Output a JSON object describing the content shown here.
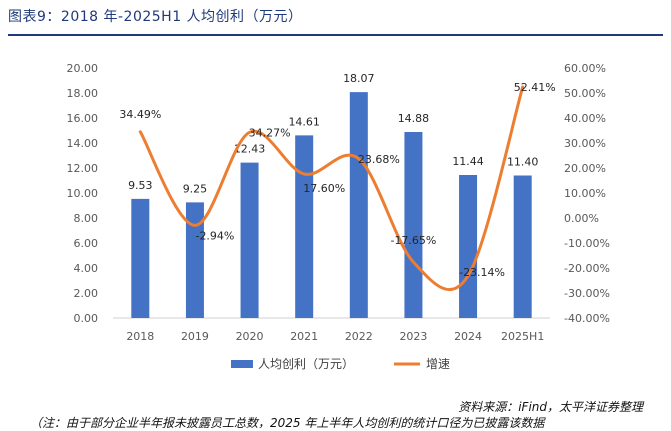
{
  "title": "图表9：2018 年-2025H1 人均创利（万元）",
  "source": "资料来源：iFind，太平洋证券整理",
  "note": "（注：由于部分企业半年报未披露员工总数，2025 年上半年人均创利的统计口径为已披露该数据",
  "colors": {
    "bar": "#4472c4",
    "line": "#ed7d31",
    "title": "#1f3a7a"
  },
  "chart_data": {
    "type": "bar",
    "categories": [
      "2018",
      "2019",
      "2020",
      "2021",
      "2022",
      "2023",
      "2024",
      "2025H1"
    ],
    "series": [
      {
        "name": "人均创利（万元）",
        "type": "bar",
        "axis": "left",
        "values": [
          9.53,
          9.25,
          12.43,
          14.61,
          18.07,
          14.88,
          11.44,
          11.4
        ],
        "labels": [
          "9.53",
          "9.25",
          "12.43",
          "14.61",
          "18.07",
          "14.88",
          "11.44",
          "11.40"
        ]
      },
      {
        "name": "增速",
        "type": "line",
        "axis": "right",
        "smooth": true,
        "values": [
          34.49,
          -2.94,
          34.27,
          17.6,
          23.68,
          -17.65,
          -23.14,
          52.41
        ],
        "labels": [
          "34.49%",
          "-2.94%",
          "34.27%",
          "17.60%",
          "23.68%",
          "-17.65%",
          "-23.14%",
          "52.41%"
        ]
      }
    ],
    "y_left": {
      "min": 0,
      "max": 20,
      "step": 2,
      "ticks": [
        "0.00",
        "2.00",
        "4.00",
        "6.00",
        "8.00",
        "10.00",
        "12.00",
        "14.00",
        "16.00",
        "18.00",
        "20.00"
      ]
    },
    "y_right": {
      "min": -40,
      "max": 60,
      "step": 10,
      "ticks": [
        "-40.00%",
        "-30.00%",
        "-20.00%",
        "-10.00%",
        "0.00%",
        "10.00%",
        "20.00%",
        "30.00%",
        "40.00%",
        "50.00%",
        "60.00%"
      ]
    },
    "legend": {
      "position": "bottom",
      "items": [
        "人均创利（万元）",
        "增速"
      ]
    },
    "grid": false
  }
}
